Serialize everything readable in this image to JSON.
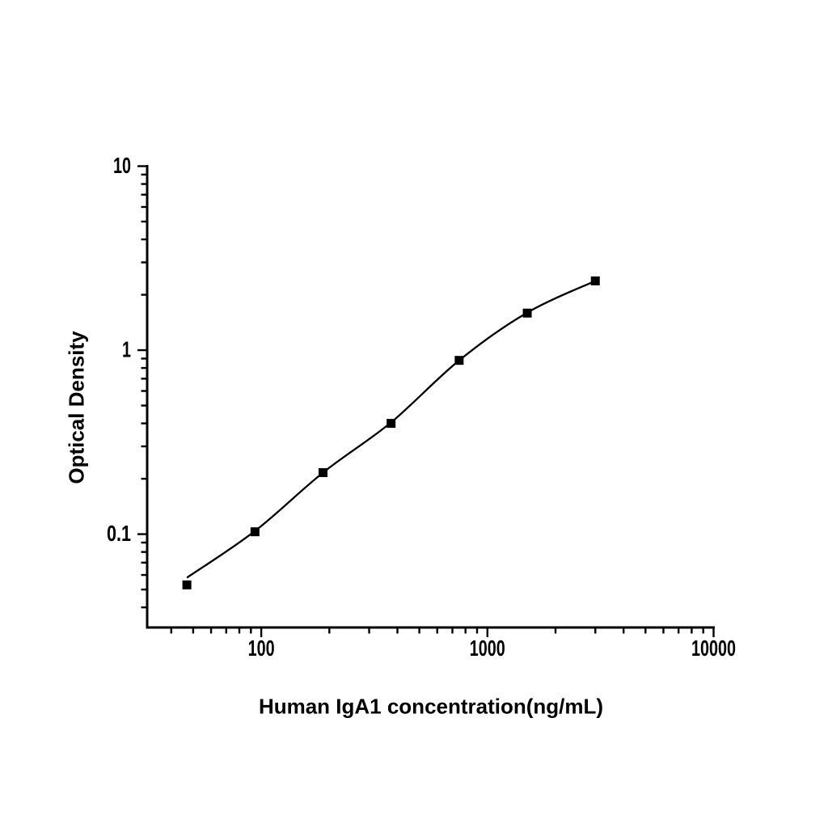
{
  "chart_data": {
    "type": "scatter",
    "subtype": "standard-curve-with-smooth-fit-line",
    "title": "",
    "xlabel": "Human IgA1 concentration(ng/mL)",
    "ylabel": "Optical Density",
    "x_scale": "log",
    "y_scale": "log",
    "xlim": [
      31.3,
      10000
    ],
    "ylim": [
      0.0311,
      10
    ],
    "grid": false,
    "legend": "none",
    "x_major_ticks": [
      {
        "value": 100,
        "label": "100"
      },
      {
        "value": 1000,
        "label": "1000"
      },
      {
        "value": 10000,
        "label": "10000"
      }
    ],
    "y_major_ticks": [
      {
        "value": 0.1,
        "label": "0.1"
      },
      {
        "value": 1,
        "label": "1"
      },
      {
        "value": 10,
        "label": "10"
      }
    ],
    "series": [
      {
        "name": "standard-points",
        "type": "scatter",
        "marker": "filled-square",
        "color": "#000000",
        "points": [
          {
            "x": 46.9,
            "y": 0.053
          },
          {
            "x": 93.8,
            "y": 0.103
          },
          {
            "x": 187.5,
            "y": 0.216
          },
          {
            "x": 375,
            "y": 0.4
          },
          {
            "x": 750,
            "y": 0.88
          },
          {
            "x": 1500,
            "y": 1.59
          },
          {
            "x": 3000,
            "y": 2.38
          }
        ]
      },
      {
        "name": "fit-curve",
        "type": "smooth-line",
        "color": "#000000",
        "points": [
          {
            "x": 46.9,
            "y": 0.058
          },
          {
            "x": 93.8,
            "y": 0.104
          },
          {
            "x": 187.5,
            "y": 0.216
          },
          {
            "x": 375,
            "y": 0.405
          },
          {
            "x": 750,
            "y": 0.88
          },
          {
            "x": 1500,
            "y": 1.6
          },
          {
            "x": 3000,
            "y": 2.38
          }
        ]
      }
    ],
    "colors": {
      "foreground": "#000000",
      "background": "#ffffff"
    }
  }
}
